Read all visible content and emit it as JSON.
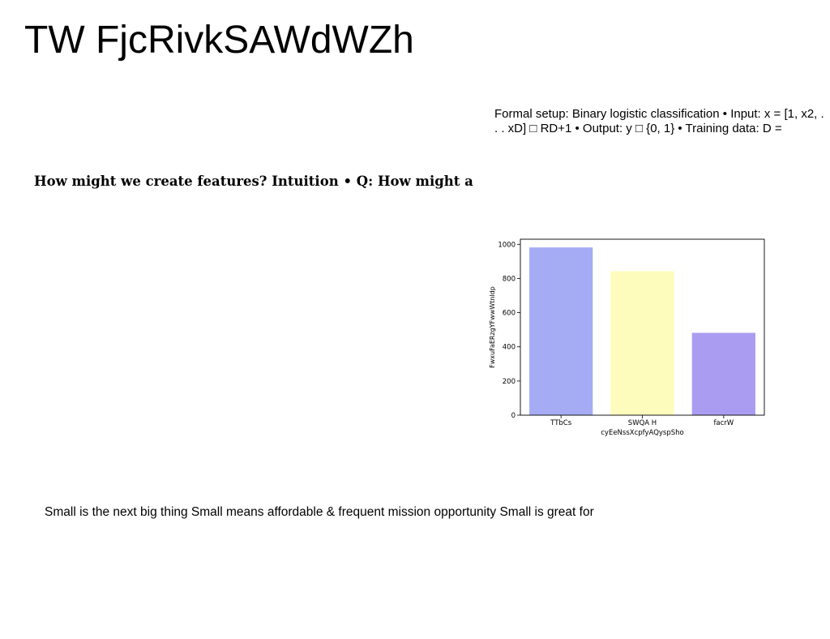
{
  "page": {
    "title": "TW FjcRivkSAWdWZh",
    "setup_text": "Formal setup: Binary logistic classification • Input: x = [1, x2, . . . xD] □ RD+1 • Output: y □ {0, 1} • Training data: D =",
    "features_text": "How might we create features? Intuition • Q: How might a",
    "small_text": "Small is the next big thing Small means affordable & frequent mission opportunity Small is great for"
  },
  "chart_data": {
    "type": "bar",
    "categories": [
      "TTbCs",
      "SWQA H",
      "facrW"
    ],
    "values": [
      982,
      843,
      482
    ],
    "colors": [
      "#a6acf3",
      "#fefcbd",
      "#aa9df1"
    ],
    "xlabel": "cyEeNssXcpfyAQyspSho",
    "ylabel": "FwxuFaERzgYFwwWtnldp",
    "ylim": [
      0,
      1030
    ],
    "yticks": [
      0,
      200,
      400,
      600,
      800,
      1000
    ],
    "grid": false
  }
}
